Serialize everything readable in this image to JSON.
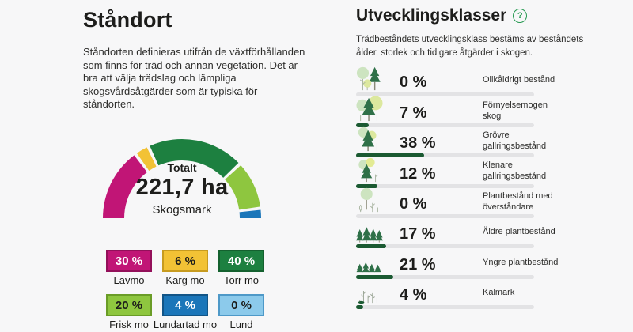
{
  "standort": {
    "title": "Ståndort",
    "description": "Ståndorten definieras utifrån de växtförhållanden som finns för träd och annan vegetation. Det är bra att välja trädslag och lämpliga skogsvårdsåtgärder som är typiska för ståndorten.",
    "gauge": {
      "center_label_top": "Totalt",
      "center_value": "221,7 ha",
      "center_label_bottom": "Skogsmark"
    },
    "legend": [
      {
        "value": "30 %",
        "label": "Lavmo",
        "color": "#c11576",
        "border": "#93105a",
        "text": "#ffffff"
      },
      {
        "value": "6 %",
        "label": "Karg mo",
        "color": "#f2c235",
        "border": "#c79b1f",
        "text": "#1d1d1b"
      },
      {
        "value": "40 %",
        "label": "Torr mo",
        "color": "#1d8040",
        "border": "#14612f",
        "text": "#ffffff"
      },
      {
        "value": "20 %",
        "label": "Frisk mo",
        "color": "#8ec63f",
        "border": "#6a9c27",
        "text": "#1d1d1b"
      },
      {
        "value": "4 %",
        "label": "Lundartad mo",
        "color": "#1b76b9",
        "border": "#125587",
        "text": "#ffffff"
      },
      {
        "value": "0 %",
        "label": "Lund",
        "color": "#8ccaeb",
        "border": "#4e99c8",
        "text": "#1d1d1b"
      }
    ]
  },
  "utvecklingsklasser": {
    "title": "Utvecklingsklasser",
    "help_icon": "question-mark-circle-icon",
    "help_color": "#23984f",
    "description": "Trädbeståndets utvecklingsklass bestäms av beståndets ålder, storlek och tidigare åtgärder i skogen.",
    "bar_color": "#1b5a32",
    "track_color": "#e3e3e5",
    "rows": [
      {
        "icon": "mixed-age-stand-icon",
        "value": "0 %",
        "pct": 0,
        "label": "Olikåldrigt bestånd"
      },
      {
        "icon": "regeneration-mature-forest-icon",
        "value": "7 %",
        "pct": 7,
        "label": "Förnyelsemogen skog"
      },
      {
        "icon": "coarse-thinning-stand-icon",
        "value": "38 %",
        "pct": 38,
        "label": "Grövre gallringsbestånd"
      },
      {
        "icon": "fine-thinning-stand-icon",
        "value": "12 %",
        "pct": 12,
        "label": "Klenare gallringsbestånd"
      },
      {
        "icon": "seedling-stand-overstory-icon",
        "value": "0 %",
        "pct": 0,
        "label": "Plantbestånd med överståndare"
      },
      {
        "icon": "older-seedling-stand-icon",
        "value": "17 %",
        "pct": 17,
        "label": "Äldre plantbestånd"
      },
      {
        "icon": "younger-seedling-stand-icon",
        "value": "21 %",
        "pct": 21,
        "label": "Yngre plantbestånd"
      },
      {
        "icon": "clearcut-icon",
        "value": "4 %",
        "pct": 4,
        "label": "Kalmark"
      }
    ]
  },
  "chart_data": [
    {
      "type": "pie",
      "layout": "semicircle-donut-gauge",
      "title": "Totalt 221,7 ha Skogsmark",
      "categories": [
        "Lavmo",
        "Karg mo",
        "Torr mo",
        "Frisk mo",
        "Lundartad mo",
        "Lund"
      ],
      "values": [
        30,
        6,
        40,
        20,
        4,
        0
      ],
      "unit": "%",
      "colors": [
        "#c11576",
        "#f2c235",
        "#1d8040",
        "#8ec63f",
        "#1b76b9",
        "#8ccaeb"
      ],
      "total_value": "221,7",
      "total_unit": "ha",
      "legend_position": "bottom"
    },
    {
      "type": "bar",
      "orientation": "horizontal",
      "title": "Utvecklingsklasser",
      "categories": [
        "Olikåldrigt bestånd",
        "Förnyelsemogen skog",
        "Grövre gallringsbestånd",
        "Klenare gallringsbestånd",
        "Plantbestånd med överståndare",
        "Äldre plantbestånd",
        "Yngre plantbestånd",
        "Kalmark"
      ],
      "values": [
        0,
        7,
        38,
        12,
        0,
        17,
        21,
        4
      ],
      "unit": "%",
      "xlim": [
        0,
        100
      ],
      "bar_color": "#1b5a32",
      "grid": false
    }
  ]
}
